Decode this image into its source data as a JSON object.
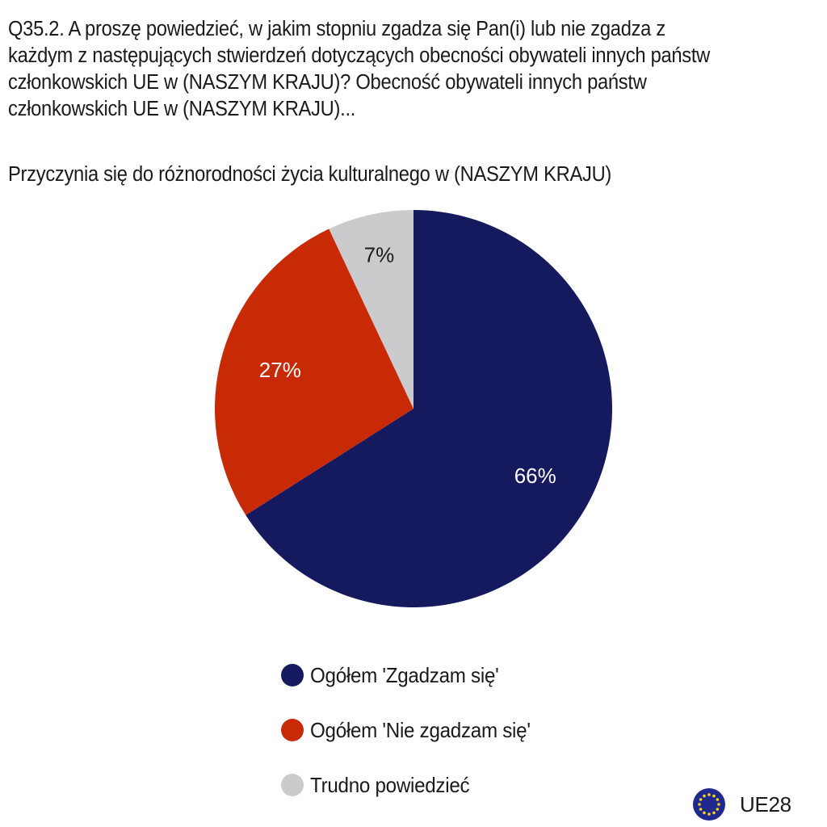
{
  "question": {
    "lines": [
      "Q35.2. A proszę powiedzieć, w jakim stopniu zgadza się Pan(i) lub nie zgadza z",
      "każdym z następujących stwierdzeń dotyczących obecności obywateli innych państw",
      "członkowskich UE w (NASZYM KRAJU)? Obecność obywateli innych państw",
      "członkowskich UE w (NASZYM KRAJU)..."
    ]
  },
  "subtitle": "Przyczynia się do różnorodności życia kulturalnego w (NASZYM KRAJU)",
  "chart_data": {
    "type": "pie",
    "title": "Przyczynia się do różnorodności życia kulturalnego w (NASZYM KRAJU)",
    "legend_position": "bottom",
    "slices": [
      {
        "label": "Ogółem 'Zgadzam się'",
        "value": 66,
        "display": "66%",
        "color": "#151a5e",
        "label_color": "#ffffff"
      },
      {
        "label": "Ogółem 'Nie zgadzam się'",
        "value": 27,
        "display": "27%",
        "color": "#c92a06",
        "label_color": "#ffffff"
      },
      {
        "label": "Trudno powiedzieć",
        "value": 7,
        "display": "7%",
        "color": "#cbcbcd",
        "label_color": "#1a1a1a"
      }
    ]
  },
  "legend": {
    "items": [
      {
        "label": "Ogółem 'Zgadzam się'",
        "color": "#151a5e"
      },
      {
        "label": "Ogółem 'Nie zgadzam się'",
        "color": "#c92a06"
      },
      {
        "label": "Trudno powiedzieć",
        "color": "#cbcbcd"
      }
    ]
  },
  "region": {
    "label": "UE28",
    "icon": "eu-flag-icon",
    "flag_color": "#1f2a8c",
    "star_color": "#f6d21c"
  }
}
